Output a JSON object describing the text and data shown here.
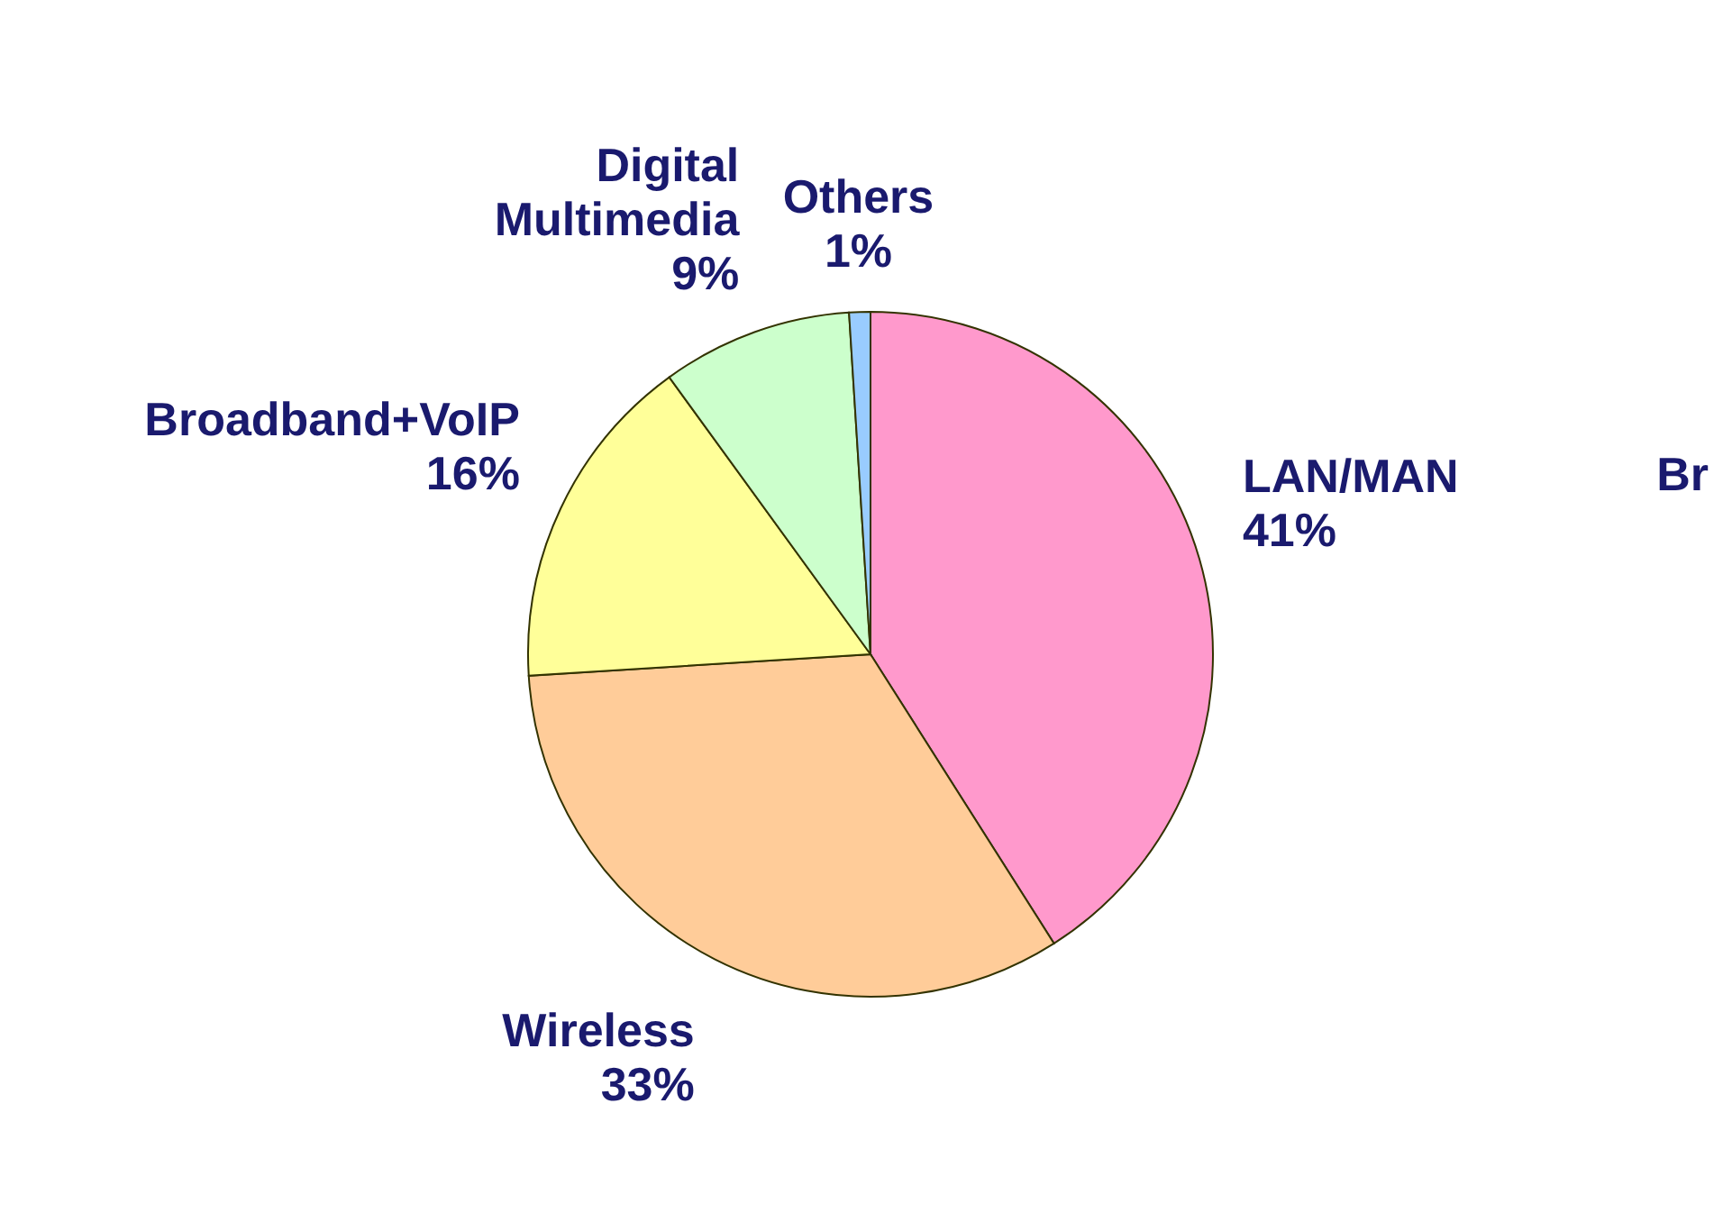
{
  "chart_data": {
    "type": "pie",
    "categories": [
      "LAN/MAN",
      "Wireless",
      "Broadband+VoIP",
      "Digital Multimedia",
      "Others"
    ],
    "values": [
      41,
      33,
      16,
      9,
      1
    ],
    "value_labels": [
      "41%",
      "33%",
      "16%",
      "9%",
      "1%"
    ],
    "colors": [
      "#ff99cc",
      "#ffcc99",
      "#ffff99",
      "#ccffcc",
      "#99ccff"
    ],
    "annotations": [
      "Br"
    ]
  }
}
